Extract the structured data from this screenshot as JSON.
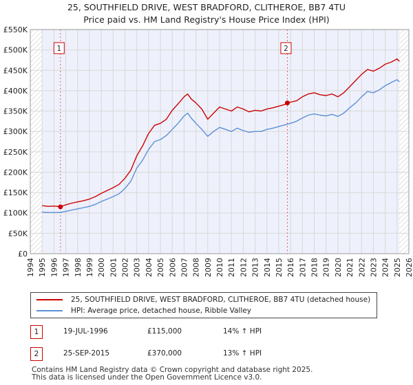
{
  "chart_data": {
    "type": "line",
    "title": "25, SOUTHFIELD DRIVE, WEST BRADFORD, CLITHEROE, BB7 4TU",
    "subtitle": "Price paid vs. HM Land Registry's House Price Index (HPI)",
    "xlabel": "",
    "ylabel": "",
    "xlim": [
      1994,
      2026
    ],
    "ylim": [
      0,
      550000
    ],
    "x_ticks": [
      "1994",
      "1995",
      "1996",
      "1997",
      "1998",
      "1999",
      "2000",
      "2001",
      "2002",
      "2003",
      "2004",
      "2005",
      "2006",
      "2007",
      "2008",
      "2009",
      "2010",
      "2011",
      "2012",
      "2013",
      "2014",
      "2015",
      "2016",
      "2017",
      "2018",
      "2019",
      "2020",
      "2021",
      "2022",
      "2023",
      "2024",
      "2025",
      "2026"
    ],
    "y_ticks": [
      "£0",
      "£50K",
      "£100K",
      "£150K",
      "£200K",
      "£250K",
      "£300K",
      "£350K",
      "£400K",
      "£450K",
      "£500K",
      "£550K"
    ],
    "data_start_year": 1995,
    "data_end_year": 2025.2,
    "series": [
      {
        "name": "25, SOUTHFIELD DRIVE, WEST BRADFORD, CLITHEROE, BB7 4TU (detached house)",
        "color": "#cc0000",
        "x": [
          1995,
          1995.5,
          1996,
          1996.55,
          1997,
          1997.5,
          1998,
          1998.5,
          1999,
          1999.5,
          2000,
          2000.5,
          2001,
          2001.5,
          2002,
          2002.5,
          2003,
          2003.5,
          2004,
          2004.5,
          2005,
          2005.5,
          2006,
          2006.5,
          2007,
          2007.3,
          2007.6,
          2008,
          2008.5,
          2009,
          2009.5,
          2010,
          2010.5,
          2011,
          2011.5,
          2012,
          2012.5,
          2013,
          2013.5,
          2014,
          2014.5,
          2015,
          2015.5,
          2015.73,
          2016,
          2016.5,
          2017,
          2017.5,
          2018,
          2018.5,
          2019,
          2019.5,
          2020,
          2020.5,
          2021,
          2021.5,
          2022,
          2022.5,
          2023,
          2023.5,
          2024,
          2024.5,
          2025,
          2025.2
        ],
        "values": [
          118000,
          116000,
          117000,
          115000,
          120000,
          124000,
          127000,
          130000,
          134000,
          140000,
          148000,
          155000,
          162000,
          170000,
          185000,
          205000,
          240000,
          265000,
          295000,
          315000,
          320000,
          330000,
          352000,
          368000,
          385000,
          392000,
          380000,
          370000,
          355000,
          330000,
          345000,
          360000,
          355000,
          350000,
          360000,
          355000,
          348000,
          352000,
          350000,
          355000,
          358000,
          362000,
          366000,
          370000,
          372000,
          375000,
          385000,
          392000,
          395000,
          390000,
          388000,
          392000,
          385000,
          395000,
          410000,
          425000,
          440000,
          452000,
          448000,
          455000,
          465000,
          470000,
          478000,
          472000
        ]
      },
      {
        "name": "HPI: Average price, detached house, Ribble Valley",
        "color": "#5b8fd6",
        "x": [
          1995,
          1995.5,
          1996,
          1996.5,
          1997,
          1997.5,
          1998,
          1998.5,
          1999,
          1999.5,
          2000,
          2000.5,
          2001,
          2001.5,
          2002,
          2002.5,
          2003,
          2003.5,
          2004,
          2004.5,
          2005,
          2005.5,
          2006,
          2006.5,
          2007,
          2007.3,
          2007.6,
          2008,
          2008.5,
          2009,
          2009.5,
          2010,
          2010.5,
          2011,
          2011.5,
          2012,
          2012.5,
          2013,
          2013.5,
          2014,
          2014.5,
          2015,
          2015.5,
          2016,
          2016.5,
          2017,
          2017.5,
          2018,
          2018.5,
          2019,
          2019.5,
          2020,
          2020.5,
          2021,
          2021.5,
          2022,
          2022.5,
          2023,
          2023.5,
          2024,
          2024.5,
          2025,
          2025.2
        ],
        "values": [
          102000,
          101000,
          101000,
          101000,
          104000,
          107000,
          110000,
          113000,
          116000,
          121000,
          128000,
          134000,
          140000,
          147000,
          160000,
          178000,
          210000,
          230000,
          256000,
          275000,
          280000,
          290000,
          305000,
          320000,
          338000,
          345000,
          333000,
          320000,
          305000,
          288000,
          300000,
          310000,
          305000,
          300000,
          308000,
          302000,
          298000,
          300000,
          300000,
          305000,
          308000,
          312000,
          316000,
          320000,
          325000,
          333000,
          340000,
          343000,
          340000,
          338000,
          342000,
          337000,
          345000,
          358000,
          370000,
          385000,
          398000,
          395000,
          402000,
          412000,
          420000,
          427000,
          422000
        ]
      }
    ],
    "sales": [
      {
        "label": "1",
        "x": 1996.55,
        "value": 115000
      },
      {
        "label": "2",
        "x": 2015.73,
        "value": 370000
      }
    ]
  },
  "legend": [
    {
      "label": "25, SOUTHFIELD DRIVE, WEST BRADFORD, CLITHEROE, BB7 4TU (detached house)",
      "color": "#cc0000"
    },
    {
      "label": "HPI: Average price, detached house, Ribble Valley",
      "color": "#5b8fd6"
    }
  ],
  "sales_table": [
    {
      "num": "1",
      "date": "19-JUL-1996",
      "price": "£115,000",
      "hpi": "14% ↑ HPI"
    },
    {
      "num": "2",
      "date": "25-SEP-2015",
      "price": "£370,000",
      "hpi": "13% ↑ HPI"
    }
  ],
  "footer": {
    "line1": "Contains HM Land Registry data © Crown copyright and database right 2025.",
    "line2": "This data is licensed under the Open Government Licence v3.0."
  }
}
